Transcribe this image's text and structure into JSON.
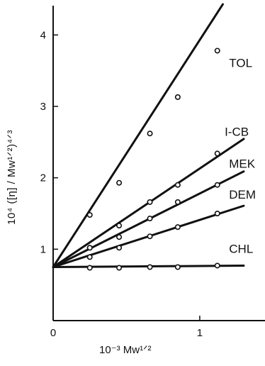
{
  "chart_data": {
    "type": "scatter",
    "title": "",
    "xlabel": "10⁻³ Mᴡ¹ᐟ²",
    "ylabel": "10⁴ ([η] / Mᴡ¹ᐟ²)⁴ᐟ³",
    "xlim": [
      0,
      1.45
    ],
    "ylim": [
      0,
      4.45
    ],
    "x_ticks": [
      {
        "value": 0,
        "label": "0"
      },
      {
        "value": 1,
        "label": "1"
      }
    ],
    "y_ticks": [
      {
        "value": 1,
        "label": "1"
      },
      {
        "value": 2,
        "label": "2"
      },
      {
        "value": 3,
        "label": "3"
      },
      {
        "value": 4,
        "label": "4"
      }
    ],
    "grid": false,
    "intercept": 0.75,
    "series": [
      {
        "name": "TOL",
        "slope": 3.18,
        "line_end": 1.45,
        "points": [
          [
            0.25,
            1.48
          ],
          [
            0.45,
            1.93
          ],
          [
            0.66,
            2.62
          ],
          [
            0.85,
            3.13
          ],
          [
            1.12,
            3.78
          ]
        ]
      },
      {
        "name": "I-CB",
        "slope": 1.38,
        "line_end": 1.3,
        "points": [
          [
            0.25,
            1.02
          ],
          [
            0.45,
            1.33
          ],
          [
            0.66,
            1.66
          ],
          [
            0.85,
            1.9
          ],
          [
            1.12,
            2.34
          ]
        ]
      },
      {
        "name": "MEK",
        "slope": 1.03,
        "line_end": 1.3,
        "points": [
          [
            0.25,
            1.02
          ],
          [
            0.45,
            1.17
          ],
          [
            0.66,
            1.43
          ],
          [
            0.85,
            1.66
          ],
          [
            1.12,
            1.9
          ]
        ]
      },
      {
        "name": "DEM",
        "slope": 0.66,
        "line_end": 1.3,
        "points": [
          [
            0.25,
            0.89
          ],
          [
            0.45,
            1.02
          ],
          [
            0.66,
            1.18
          ],
          [
            0.85,
            1.31
          ],
          [
            1.12,
            1.5
          ]
        ]
      },
      {
        "name": "CHL",
        "slope": 0.015,
        "line_end": 1.3,
        "points": [
          [
            0.25,
            0.74
          ],
          [
            0.45,
            0.74
          ],
          [
            0.66,
            0.75
          ],
          [
            0.85,
            0.75
          ],
          [
            1.12,
            0.77
          ]
        ]
      }
    ]
  }
}
